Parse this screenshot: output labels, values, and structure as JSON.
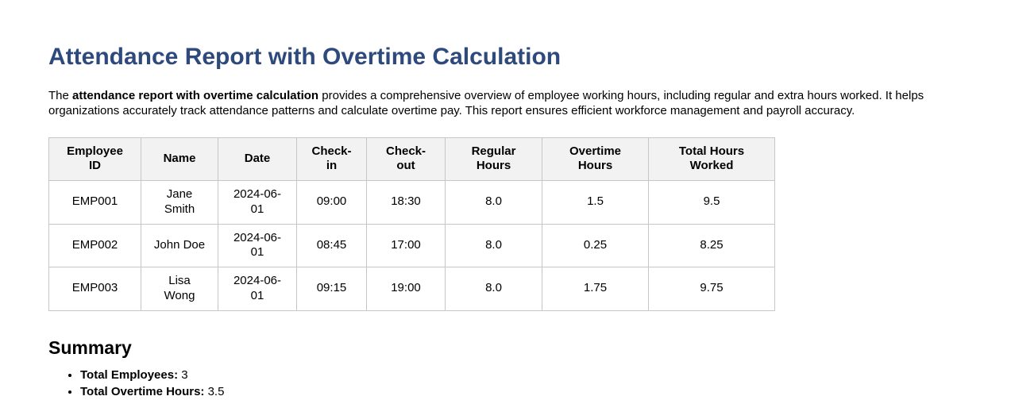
{
  "page": {
    "title": "Attendance Report with Overtime Calculation",
    "description": {
      "prefix": "The ",
      "bold": "attendance report with overtime calculation",
      "rest": " provides a comprehensive overview of employee working hours, including regular and extra hours worked. It helps organizations accurately track attendance patterns and calculate overtime pay. This report ensures efficient workforce management and payroll accuracy."
    }
  },
  "colors": {
    "title_accent": "#2e4a7d",
    "table_header_bg": "#f2f2f2",
    "table_border": "#c6c6c6"
  },
  "table": {
    "columns": [
      "Employee ID",
      "Name",
      "Date",
      "Check-in",
      "Check-out",
      "Regular Hours",
      "Overtime Hours",
      "Total Hours Worked"
    ],
    "rows": [
      {
        "employee_id": "EMP001",
        "name": "Jane Smith",
        "date": "2024-06-01",
        "check_in": "09:00",
        "check_out": "18:30",
        "regular_hours": "8.0",
        "overtime_hours": "1.5",
        "total_hours": "9.5"
      },
      {
        "employee_id": "EMP002",
        "name": "John Doe",
        "date": "2024-06-01",
        "check_in": "08:45",
        "check_out": "17:00",
        "regular_hours": "8.0",
        "overtime_hours": "0.25",
        "total_hours": "8.25"
      },
      {
        "employee_id": "EMP003",
        "name": "Lisa Wong",
        "date": "2024-06-01",
        "check_in": "09:15",
        "check_out": "19:00",
        "regular_hours": "8.0",
        "overtime_hours": "1.75",
        "total_hours": "9.75"
      }
    ]
  },
  "summary": {
    "heading": "Summary",
    "items": [
      {
        "label": "Total Employees:",
        "value": " 3"
      },
      {
        "label": "Total Overtime Hours:",
        "value": " 3.5"
      }
    ]
  }
}
